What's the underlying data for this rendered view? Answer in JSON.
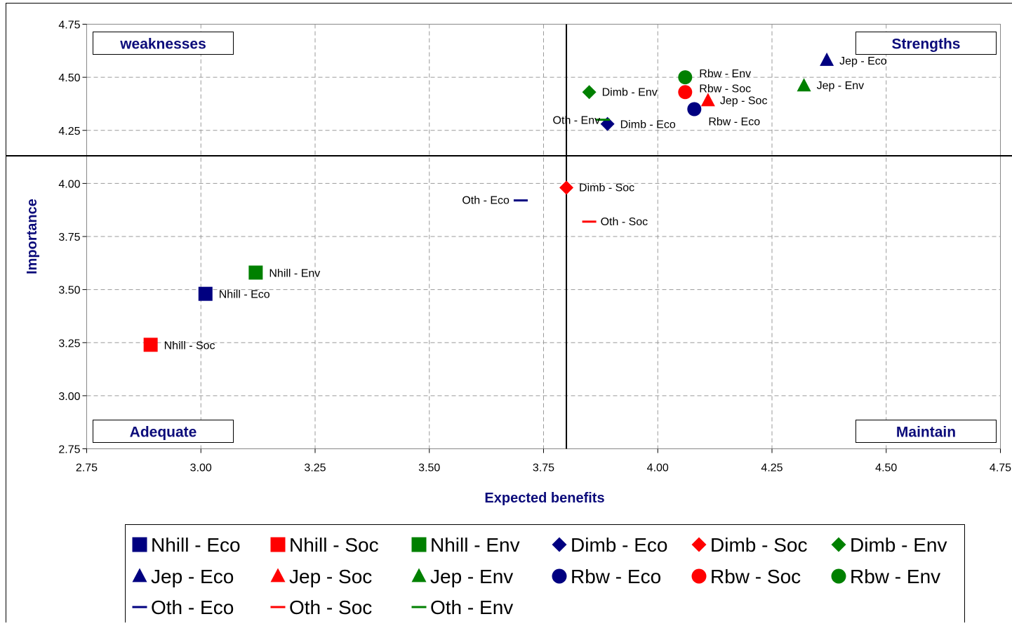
{
  "chart_data": {
    "type": "scatter",
    "xlabel": "Expected benefits",
    "ylabel": "Importance",
    "xlim": [
      2.75,
      4.75
    ],
    "ylim": [
      2.75,
      4.75
    ],
    "x_ticks": [
      "2.75",
      "3.00",
      "3.25",
      "3.50",
      "3.75",
      "4.00",
      "4.25",
      "4.50",
      "4.75"
    ],
    "y_ticks": [
      "2.75",
      "3.00",
      "3.25",
      "3.50",
      "3.75",
      "4.00",
      "4.25",
      "4.50",
      "4.75"
    ],
    "grid": true,
    "reference_lines": {
      "x": 3.8,
      "y": 4.13
    },
    "quadrant_labels": {
      "top_left": "weaknesses",
      "top_right": "Strengths",
      "bottom_left": "Adequate",
      "bottom_right": "Maintain"
    },
    "legend_position": "bottom",
    "colors": {
      "Eco": "#000080",
      "Soc": "#ff0000",
      "Env": "#008000"
    },
    "series": [
      {
        "name": "Nhill - Eco",
        "marker": "square",
        "group": "Eco",
        "x": 3.01,
        "y": 3.48
      },
      {
        "name": "Nhill - Soc",
        "marker": "square",
        "group": "Soc",
        "x": 2.89,
        "y": 3.24
      },
      {
        "name": "Nhill - Env",
        "marker": "square",
        "group": "Env",
        "x": 3.12,
        "y": 3.58
      },
      {
        "name": "Dimb - Eco",
        "marker": "diamond",
        "group": "Eco",
        "x": 3.89,
        "y": 4.28
      },
      {
        "name": "Dimb - Soc",
        "marker": "diamond",
        "group": "Soc",
        "x": 3.8,
        "y": 3.98
      },
      {
        "name": "Dimb - Env",
        "marker": "diamond",
        "group": "Env",
        "x": 3.85,
        "y": 4.43
      },
      {
        "name": "Jep - Eco",
        "marker": "triangle",
        "group": "Eco",
        "x": 4.37,
        "y": 4.58
      },
      {
        "name": "Jep - Soc",
        "marker": "triangle",
        "group": "Soc",
        "x": 4.11,
        "y": 4.39
      },
      {
        "name": "Jep - Env",
        "marker": "triangle",
        "group": "Env",
        "x": 4.32,
        "y": 4.46
      },
      {
        "name": "Rbw - Eco",
        "marker": "circle",
        "group": "Eco",
        "x": 4.08,
        "y": 4.35
      },
      {
        "name": "Rbw - Soc",
        "marker": "circle",
        "group": "Soc",
        "x": 4.06,
        "y": 4.43
      },
      {
        "name": "Rbw - Env",
        "marker": "circle",
        "group": "Env",
        "x": 4.06,
        "y": 4.5
      },
      {
        "name": "Oth - Eco",
        "marker": "dash",
        "group": "Eco",
        "x": 3.7,
        "y": 3.92
      },
      {
        "name": "Oth - Soc",
        "marker": "dash",
        "group": "Soc",
        "x": 3.85,
        "y": 3.82
      },
      {
        "name": "Oth - Env",
        "marker": "dash",
        "group": "Env",
        "x": 3.88,
        "y": 4.3
      }
    ]
  }
}
